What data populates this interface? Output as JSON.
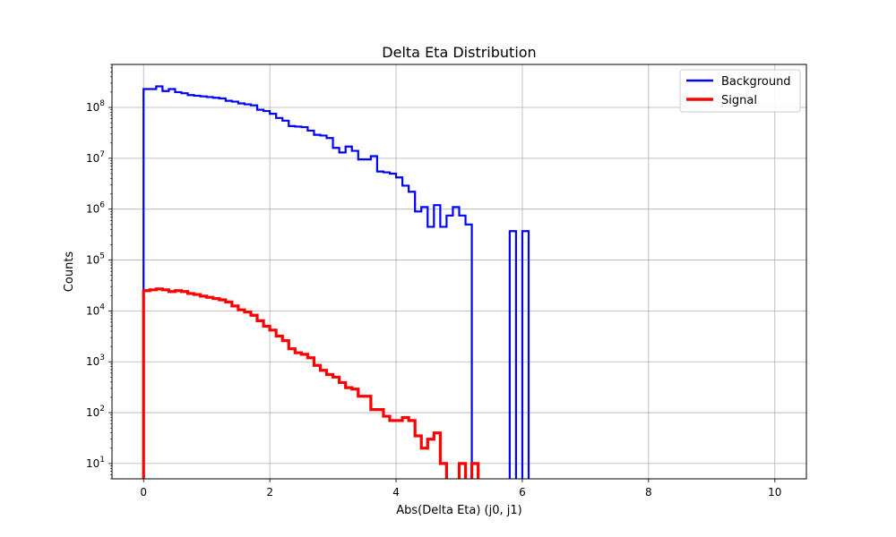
{
  "chart_data": {
    "type": "histogram",
    "title": "Delta Eta Distribution",
    "xlabel": "Abs(Delta Eta) (j0, j1)",
    "ylabel": "Counts",
    "xlim": [
      -0.5,
      10.5
    ],
    "ylim": [
      5,
      700000000
    ],
    "yscale": "log",
    "grid": true,
    "legend_position": "top-right",
    "x_ticks": [
      0,
      2,
      4,
      6,
      8,
      10
    ],
    "y_ticks": [
      {
        "value": 10,
        "base": "10",
        "exp": "1"
      },
      {
        "value": 100,
        "base": "10",
        "exp": "2"
      },
      {
        "value": 1000,
        "base": "10",
        "exp": "3"
      },
      {
        "value": 10000,
        "base": "10",
        "exp": "4"
      },
      {
        "value": 100000,
        "base": "10",
        "exp": "5"
      },
      {
        "value": 1000000,
        "base": "10",
        "exp": "6"
      },
      {
        "value": 10000000,
        "base": "10",
        "exp": "7"
      },
      {
        "value": 100000000,
        "base": "10",
        "exp": "8"
      }
    ],
    "bin_edges_start": 0,
    "bin_width": 0.1,
    "series": [
      {
        "name": "Background",
        "color": "#0000ff",
        "values": [
          230000000,
          230000000,
          260000000,
          210000000,
          230000000,
          200000000,
          190000000,
          175000000,
          170000000,
          165000000,
          160000000,
          155000000,
          150000000,
          135000000,
          130000000,
          120000000,
          115000000,
          110000000,
          90000000,
          85000000,
          75000000,
          62000000,
          55000000,
          43000000,
          42000000,
          41000000,
          35000000,
          29000000,
          28000000,
          25000000,
          16000000,
          13000000,
          17000000,
          14000000,
          9500000,
          9500000,
          11000000,
          5500000,
          5300000,
          5000000,
          4200000,
          2900000,
          2200000,
          900000,
          1100000,
          450000,
          1200000,
          450000,
          750000,
          1100000,
          750000,
          500000,
          0,
          0,
          0,
          0,
          0,
          0,
          370000,
          0,
          370000
        ]
      },
      {
        "name": "Signal",
        "color": "#ff0000",
        "values": [
          25000,
          26000,
          27000,
          26000,
          24000,
          25000,
          24000,
          22000,
          21000,
          19500,
          18500,
          17500,
          16500,
          15000,
          12500,
          10500,
          9500,
          8200,
          6400,
          5000,
          4200,
          3200,
          2600,
          1800,
          1500,
          1400,
          1200,
          850,
          680,
          560,
          500,
          390,
          310,
          290,
          210,
          210,
          115,
          115,
          85,
          70,
          70,
          80,
          70,
          35,
          20,
          30,
          40,
          10,
          0,
          0,
          10,
          0,
          10
        ]
      }
    ]
  }
}
